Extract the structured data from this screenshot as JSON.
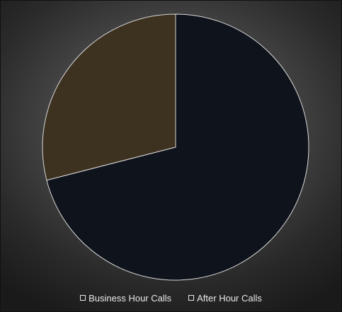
{
  "chart_data": {
    "type": "pie",
    "title": "",
    "slices": [
      {
        "label": "Business Hour Calls",
        "value": 71,
        "color": "#0f131c"
      },
      {
        "label": "After Hour Calls",
        "value": 29,
        "color": "#3d3120"
      }
    ],
    "slice_outline_color": "#d8d8d8",
    "start_angle_deg": 0,
    "direction": "clockwise",
    "legend_position": "bottom"
  }
}
